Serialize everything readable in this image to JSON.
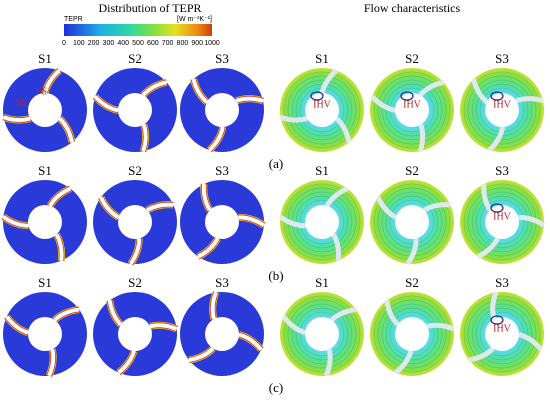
{
  "titles": {
    "left": "Distribution of TEPR",
    "right": "Flow characteristics"
  },
  "colorbar": {
    "label": "TEPR",
    "unit": "[W m⁻³K⁻¹]",
    "ticks": [
      0,
      100,
      200,
      300,
      400,
      500,
      600,
      700,
      800,
      900,
      1000
    ]
  },
  "rows": [
    {
      "label": "(a)",
      "left": [
        "S1",
        "S2",
        "S3"
      ],
      "right": [
        "S1",
        "S2",
        "S3"
      ]
    },
    {
      "label": "(b)",
      "left": [
        "S1",
        "S2",
        "S3"
      ],
      "right": [
        "S1",
        "S2",
        "S3"
      ]
    },
    {
      "label": "(c)",
      "left": [
        "S1",
        "S2",
        "S3"
      ],
      "right": [
        "S1",
        "S2",
        "S3"
      ]
    }
  ],
  "annotations": {
    "ss": "SS",
    "ps": "PS",
    "ihv": "IHV"
  }
}
